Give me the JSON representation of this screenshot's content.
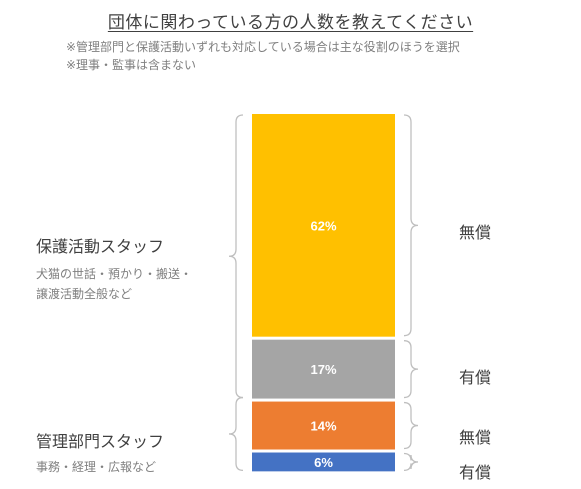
{
  "title": "団体に関わっている方の人数を教えてください",
  "notes": [
    "※管理部門と保護活動いずれも対応している場合は主な役割のほうを選択",
    "※理事・監事は含まない"
  ],
  "groups": [
    {
      "label": "保護活動スタッフ",
      "sub": "犬猫の世話・預かり・搬送・譲渡活動全般など"
    },
    {
      "label": "管理部門スタッフ",
      "sub": "事務・経理・広報など"
    }
  ],
  "chart_data": {
    "type": "bar",
    "stacked": true,
    "categories": [
      "団体に関わっている方の人数"
    ],
    "series": [
      {
        "group": "保護活動スタッフ",
        "pay": "無償",
        "values": [
          62
        ],
        "label": "62%",
        "color": "#FFC000"
      },
      {
        "group": "保護活動スタッフ",
        "pay": "有償",
        "values": [
          17
        ],
        "label": "17%",
        "color": "#A5A5A5"
      },
      {
        "group": "管理部門スタッフ",
        "pay": "無償",
        "values": [
          14
        ],
        "label": "14%",
        "color": "#ED7D31"
      },
      {
        "group": "管理部門スタッフ",
        "pay": "有償",
        "values": [
          6
        ],
        "label": "6%",
        "color": "#4472C4"
      }
    ],
    "ylim": [
      0,
      100
    ],
    "unit": "%"
  }
}
